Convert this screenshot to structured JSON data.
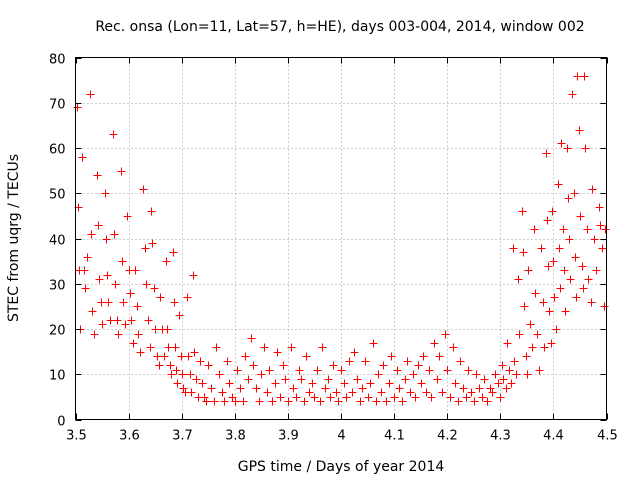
{
  "chart_data": {
    "type": "scatter",
    "title": "Rec. onsa (Lon=11, Lat=57, h=HE), days 003-004, 2014, window 002",
    "xlabel": "GPS time / Days of year 2014",
    "ylabel": "STEC from uqrg / TECUs",
    "xlim": [
      3.5,
      4.5
    ],
    "ylim": [
      0,
      80
    ],
    "x_ticks": [
      "3.5",
      "3.6",
      "3.7",
      "3.8",
      "3.9",
      "4",
      "4.1",
      "4.2",
      "4.3",
      "4.4",
      "4.5"
    ],
    "y_ticks": [
      "0",
      "10",
      "20",
      "30",
      "40",
      "50",
      "60",
      "70",
      "80"
    ],
    "grid": true,
    "marker": "+",
    "color": "#ff0000",
    "series": [
      {
        "name": "STEC",
        "points": [
          [
            3.502,
            69
          ],
          [
            3.505,
            47
          ],
          [
            3.507,
            33
          ],
          [
            3.509,
            20
          ],
          [
            3.513,
            58
          ],
          [
            3.516,
            33
          ],
          [
            3.518,
            29
          ],
          [
            3.522,
            36
          ],
          [
            3.528,
            72
          ],
          [
            3.53,
            41
          ],
          [
            3.532,
            24
          ],
          [
            3.535,
            19
          ],
          [
            3.54,
            54
          ],
          [
            3.542,
            43
          ],
          [
            3.545,
            31
          ],
          [
            3.548,
            26
          ],
          [
            3.55,
            21
          ],
          [
            3.555,
            50
          ],
          [
            3.557,
            40
          ],
          [
            3.56,
            32
          ],
          [
            3.562,
            26
          ],
          [
            3.565,
            22
          ],
          [
            3.57,
            63
          ],
          [
            3.572,
            41
          ],
          [
            3.575,
            30
          ],
          [
            3.578,
            22
          ],
          [
            3.58,
            19
          ],
          [
            3.585,
            55
          ],
          [
            3.588,
            35
          ],
          [
            3.59,
            26
          ],
          [
            3.593,
            21
          ],
          [
            3.597,
            45
          ],
          [
            3.6,
            33
          ],
          [
            3.602,
            28
          ],
          [
            3.605,
            22
          ],
          [
            3.608,
            17
          ],
          [
            3.612,
            33
          ],
          [
            3.615,
            25
          ],
          [
            3.618,
            19
          ],
          [
            3.622,
            15
          ],
          [
            3.628,
            51
          ],
          [
            3.63,
            38
          ],
          [
            3.633,
            30
          ],
          [
            3.636,
            22
          ],
          [
            3.64,
            16
          ],
          [
            3.642,
            46
          ],
          [
            3.645,
            39
          ],
          [
            3.648,
            29
          ],
          [
            3.65,
            20
          ],
          [
            3.653,
            14
          ],
          [
            3.658,
            12
          ],
          [
            3.66,
            27
          ],
          [
            3.663,
            20
          ],
          [
            3.667,
            14
          ],
          [
            3.67,
            35
          ],
          [
            3.672,
            20
          ],
          [
            3.675,
            16
          ],
          [
            3.678,
            12
          ],
          [
            3.68,
            10
          ],
          [
            3.684,
            37
          ],
          [
            3.686,
            26
          ],
          [
            3.688,
            16
          ],
          [
            3.69,
            11
          ],
          [
            3.692,
            8
          ],
          [
            3.695,
            23
          ],
          [
            3.698,
            14
          ],
          [
            3.7,
            10
          ],
          [
            3.703,
            7
          ],
          [
            3.706,
            6
          ],
          [
            3.71,
            27
          ],
          [
            3.712,
            14
          ],
          [
            3.715,
            10
          ],
          [
            3.718,
            6
          ],
          [
            3.722,
            32
          ],
          [
            3.724,
            15
          ],
          [
            3.727,
            9
          ],
          [
            3.73,
            5
          ],
          [
            3.735,
            13
          ],
          [
            3.738,
            8
          ],
          [
            3.742,
            5
          ],
          [
            3.745,
            4
          ],
          [
            3.75,
            12
          ],
          [
            3.755,
            7
          ],
          [
            3.76,
            4
          ],
          [
            3.765,
            16
          ],
          [
            3.77,
            10
          ],
          [
            3.775,
            6
          ],
          [
            3.78,
            4
          ],
          [
            3.785,
            13
          ],
          [
            3.79,
            8
          ],
          [
            3.795,
            5
          ],
          [
            3.8,
            4
          ],
          [
            3.805,
            11
          ],
          [
            3.81,
            7
          ],
          [
            3.815,
            4
          ],
          [
            3.82,
            14
          ],
          [
            3.825,
            9
          ],
          [
            3.83,
            18
          ],
          [
            3.835,
            12
          ],
          [
            3.84,
            7
          ],
          [
            3.845,
            4
          ],
          [
            3.85,
            10
          ],
          [
            3.855,
            16
          ],
          [
            3.86,
            6
          ],
          [
            3.865,
            11
          ],
          [
            3.87,
            4
          ],
          [
            3.875,
            8
          ],
          [
            3.88,
            15
          ],
          [
            3.885,
            5
          ],
          [
            3.89,
            12
          ],
          [
            3.895,
            9
          ],
          [
            3.9,
            4
          ],
          [
            3.905,
            16
          ],
          [
            3.91,
            7
          ],
          [
            3.915,
            5
          ],
          [
            3.92,
            11
          ],
          [
            3.925,
            9
          ],
          [
            3.93,
            4
          ],
          [
            3.935,
            14
          ],
          [
            3.94,
            6
          ],
          [
            3.945,
            8
          ],
          [
            3.95,
            5
          ],
          [
            3.955,
            11
          ],
          [
            3.96,
            4
          ],
          [
            3.965,
            16
          ],
          [
            3.97,
            7
          ],
          [
            3.975,
            9
          ],
          [
            3.98,
            5
          ],
          [
            3.985,
            12
          ],
          [
            3.99,
            6
          ],
          [
            3.995,
            4
          ],
          [
            4.0,
            11
          ],
          [
            4.005,
            8
          ],
          [
            4.01,
            5
          ],
          [
            4.015,
            13
          ],
          [
            4.02,
            6
          ],
          [
            4.025,
            15
          ],
          [
            4.03,
            9
          ],
          [
            4.035,
            4
          ],
          [
            4.04,
            7
          ],
          [
            4.045,
            13
          ],
          [
            4.05,
            5
          ],
          [
            4.055,
            8
          ],
          [
            4.06,
            17
          ],
          [
            4.065,
            4
          ],
          [
            4.07,
            10
          ],
          [
            4.075,
            6
          ],
          [
            4.08,
            12
          ],
          [
            4.085,
            4
          ],
          [
            4.09,
            8
          ],
          [
            4.095,
            14
          ],
          [
            4.1,
            5
          ],
          [
            4.105,
            11
          ],
          [
            4.11,
            7
          ],
          [
            4.115,
            4
          ],
          [
            4.12,
            9
          ],
          [
            4.125,
            13
          ],
          [
            4.13,
            6
          ],
          [
            4.135,
            10
          ],
          [
            4.14,
            5
          ],
          [
            4.145,
            12
          ],
          [
            4.15,
            8
          ],
          [
            4.155,
            14
          ],
          [
            4.16,
            6
          ],
          [
            4.165,
            11
          ],
          [
            4.17,
            5
          ],
          [
            4.175,
            17
          ],
          [
            4.18,
            9
          ],
          [
            4.185,
            14
          ],
          [
            4.19,
            6
          ],
          [
            4.195,
            19
          ],
          [
            4.2,
            11
          ],
          [
            4.205,
            5
          ],
          [
            4.21,
            16
          ],
          [
            4.215,
            8
          ],
          [
            4.22,
            4
          ],
          [
            4.225,
            13
          ],
          [
            4.23,
            7
          ],
          [
            4.235,
            5
          ],
          [
            4.24,
            11
          ],
          [
            4.245,
            6
          ],
          [
            4.25,
            4
          ],
          [
            4.255,
            10
          ],
          [
            4.26,
            7
          ],
          [
            4.265,
            5
          ],
          [
            4.27,
            9
          ],
          [
            4.275,
            4
          ],
          [
            4.28,
            7
          ],
          [
            4.285,
            6
          ],
          [
            4.29,
            10
          ],
          [
            4.295,
            8
          ],
          [
            4.3,
            5
          ],
          [
            4.303,
            12
          ],
          [
            4.306,
            9
          ],
          [
            4.31,
            7
          ],
          [
            4.313,
            17
          ],
          [
            4.316,
            11
          ],
          [
            4.32,
            8
          ],
          [
            4.323,
            38
          ],
          [
            4.326,
            13
          ],
          [
            4.33,
            10
          ],
          [
            4.333,
            31
          ],
          [
            4.336,
            19
          ],
          [
            4.34,
            46
          ],
          [
            4.342,
            37
          ],
          [
            4.345,
            25
          ],
          [
            4.348,
            14
          ],
          [
            4.35,
            10
          ],
          [
            4.353,
            33
          ],
          [
            4.356,
            21
          ],
          [
            4.36,
            16
          ],
          [
            4.363,
            42
          ],
          [
            4.366,
            28
          ],
          [
            4.37,
            19
          ],
          [
            4.373,
            11
          ],
          [
            4.376,
            38
          ],
          [
            4.38,
            26
          ],
          [
            4.383,
            16
          ],
          [
            4.386,
            59
          ],
          [
            4.388,
            44
          ],
          [
            4.39,
            34
          ],
          [
            4.392,
            24
          ],
          [
            4.395,
            17
          ],
          [
            4.398,
            46
          ],
          [
            4.4,
            35
          ],
          [
            4.402,
            27
          ],
          [
            4.405,
            20
          ],
          [
            4.408,
            52
          ],
          [
            4.41,
            38
          ],
          [
            4.412,
            29
          ],
          [
            4.415,
            61
          ],
          [
            4.418,
            42
          ],
          [
            4.42,
            33
          ],
          [
            4.422,
            24
          ],
          [
            4.425,
            60
          ],
          [
            4.428,
            49
          ],
          [
            4.43,
            40
          ],
          [
            4.432,
            31
          ],
          [
            4.435,
            72
          ],
          [
            4.438,
            50
          ],
          [
            4.44,
            36
          ],
          [
            4.442,
            27
          ],
          [
            4.445,
            76
          ],
          [
            4.448,
            64
          ],
          [
            4.45,
            45
          ],
          [
            4.453,
            34
          ],
          [
            4.456,
            29
          ],
          [
            4.458,
            76
          ],
          [
            4.46,
            60
          ],
          [
            4.463,
            42
          ],
          [
            4.466,
            31
          ],
          [
            4.47,
            26
          ],
          [
            4.473,
            51
          ],
          [
            4.476,
            40
          ],
          [
            4.48,
            33
          ],
          [
            4.485,
            47
          ],
          [
            4.488,
            43
          ],
          [
            4.492,
            38
          ],
          [
            4.495,
            25
          ],
          [
            4.498,
            42
          ]
        ]
      }
    ]
  }
}
